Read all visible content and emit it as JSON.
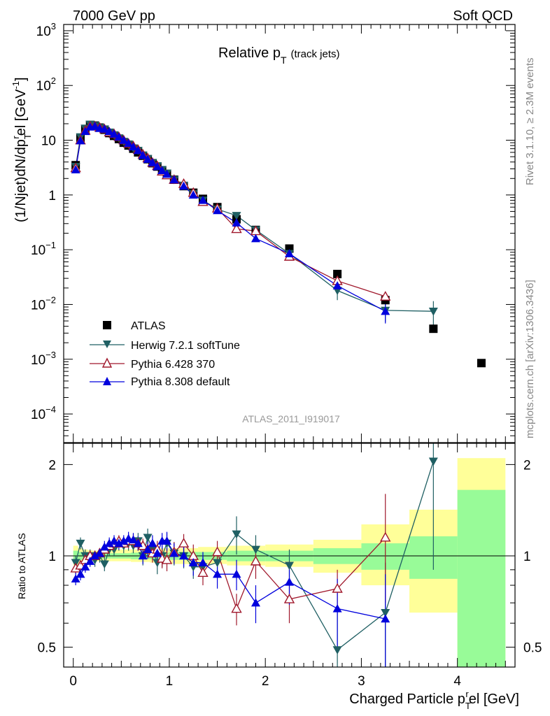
{
  "header": {
    "left": "7000 GeV pp",
    "right": "Soft QCD"
  },
  "side": {
    "rivet": "Rivet 3.1.10, ≥ 2.3M events",
    "mcplots": "mcplots.cern.ch [arXiv:1306.3436]"
  },
  "analysis_id": "ATLAS_2011_I919017",
  "colors": {
    "atlas": "#000000",
    "herwig": "#1f5f63",
    "pythia6": "#a0182c",
    "pythia8": "#0000dd",
    "band_inner": "#98fb98",
    "band_outer": "#ffff99"
  },
  "chart_data": [
    {
      "type": "scatter",
      "panel": "main",
      "title_main": "Relative p",
      "title_sub": "T",
      "title_tag": "(track jets)",
      "ylabel": "(1/Njet)dN/dp",
      "ylabel_sub": "T",
      "ylabel_sup": "r",
      "ylabel_tail": "el [GeV",
      "ylabel_unit_sup": "-1",
      "ylabel_end": "]",
      "yscale": "log",
      "ylim": [
        3e-05,
        1300
      ],
      "xlim": [
        -0.1,
        4.6
      ],
      "yticks": [
        {
          "v": 1000,
          "base": "10",
          "exp": "3"
        },
        {
          "v": 100,
          "base": "10",
          "exp": "2"
        },
        {
          "v": 10,
          "base": "10",
          "exp": ""
        },
        {
          "v": 1,
          "base": "1",
          "exp": ""
        },
        {
          "v": 0.1,
          "base": "10",
          "exp": "−1"
        },
        {
          "v": 0.01,
          "base": "10",
          "exp": "−2"
        },
        {
          "v": 0.001,
          "base": "10",
          "exp": "−3"
        },
        {
          "v": 0.0001,
          "base": "10",
          "exp": "−4"
        }
      ],
      "legend_position": "lower-left",
      "series": [
        {
          "name": "ATLAS",
          "marker": "square",
          "x": [
            0.025,
            0.075,
            0.125,
            0.175,
            0.225,
            0.275,
            0.325,
            0.375,
            0.425,
            0.475,
            0.525,
            0.575,
            0.625,
            0.675,
            0.725,
            0.775,
            0.825,
            0.875,
            0.925,
            0.975,
            1.05,
            1.15,
            1.25,
            1.35,
            1.5,
            1.7,
            1.9,
            2.25,
            2.75,
            3.25,
            3.75,
            4.25
          ],
          "y": [
            3.5,
            11,
            16,
            19,
            18.5,
            17,
            15.5,
            13.5,
            12,
            10.5,
            9,
            8,
            7,
            6,
            5.2,
            4.5,
            3.8,
            3.3,
            2.8,
            2.4,
            1.9,
            1.45,
            1.1,
            0.85,
            0.6,
            0.36,
            0.23,
            0.105,
            0.036,
            0.012,
            0.0036,
            0.00085
          ]
        },
        {
          "name": "Herwig 7.2.1 softTune",
          "marker": "triangle-down",
          "x": [
            0.025,
            0.075,
            0.125,
            0.175,
            0.225,
            0.275,
            0.325,
            0.375,
            0.425,
            0.475,
            0.525,
            0.575,
            0.625,
            0.675,
            0.725,
            0.775,
            0.825,
            0.875,
            0.925,
            0.975,
            1.05,
            1.15,
            1.25,
            1.35,
            1.5,
            1.7,
            1.9,
            2.25,
            2.75,
            3.25,
            3.75
          ],
          "y": [
            3.3,
            11.5,
            16.5,
            19.5,
            18.5,
            17,
            16,
            14,
            12.5,
            11,
            9.5,
            8.5,
            7.2,
            6.5,
            5.3,
            4.6,
            3.9,
            3.4,
            2.9,
            2.5,
            1.9,
            1.5,
            1.05,
            0.8,
            0.55,
            0.42,
            0.23,
            0.085,
            0.018,
            0.0078,
            0.0075
          ],
          "err": [
            0.2,
            0.5,
            0.5,
            0.6,
            0.6,
            0.5,
            0.5,
            0.4,
            0.4,
            0.3,
            0.3,
            0.3,
            0.25,
            0.25,
            0.2,
            0.2,
            0.15,
            0.15,
            0.12,
            0.1,
            0.08,
            0.06,
            0.05,
            0.04,
            0.03,
            0.04,
            0.02,
            0.008,
            0.006,
            0.003,
            0.004
          ]
        },
        {
          "name": "Pythia 6.428 370",
          "marker": "triangle-up-open",
          "x": [
            0.025,
            0.075,
            0.125,
            0.175,
            0.225,
            0.275,
            0.325,
            0.375,
            0.425,
            0.475,
            0.525,
            0.575,
            0.625,
            0.675,
            0.725,
            0.775,
            0.825,
            0.875,
            0.925,
            0.975,
            1.05,
            1.15,
            1.25,
            1.35,
            1.5,
            1.7,
            1.9,
            2.25,
            2.75,
            3.25
          ],
          "y": [
            3.1,
            10,
            15,
            18,
            18,
            17,
            16,
            14,
            13,
            11.5,
            10,
            8.7,
            7.8,
            6.7,
            5.5,
            4.7,
            3.9,
            3.4,
            2.7,
            2.3,
            1.9,
            1.6,
            1.1,
            0.75,
            0.57,
            0.24,
            0.22,
            0.075,
            0.027,
            0.014
          ],
          "err": [
            0.2,
            0.4,
            0.5,
            0.5,
            0.5,
            0.5,
            0.4,
            0.4,
            0.4,
            0.3,
            0.3,
            0.3,
            0.25,
            0.2,
            0.2,
            0.15,
            0.15,
            0.12,
            0.1,
            0.1,
            0.08,
            0.06,
            0.05,
            0.04,
            0.03,
            0.03,
            0.02,
            0.007,
            0.004,
            0.003
          ]
        },
        {
          "name": "Pythia 8.308 default",
          "marker": "triangle-up",
          "x": [
            0.025,
            0.075,
            0.125,
            0.175,
            0.225,
            0.275,
            0.325,
            0.375,
            0.425,
            0.475,
            0.525,
            0.575,
            0.625,
            0.675,
            0.725,
            0.775,
            0.825,
            0.875,
            0.925,
            0.975,
            1.05,
            1.15,
            1.25,
            1.35,
            1.5,
            1.7,
            1.9,
            2.25,
            2.75,
            3.25
          ],
          "y": [
            2.9,
            9.8,
            14.5,
            17.5,
            18,
            16.5,
            16,
            14.5,
            13,
            11.5,
            10,
            8.8,
            7.6,
            6.5,
            5.3,
            4.5,
            3.9,
            3.3,
            2.8,
            2.4,
            1.9,
            1.45,
            1.0,
            0.8,
            0.52,
            0.31,
            0.16,
            0.085,
            0.022,
            0.0075
          ],
          "err": [
            0.2,
            0.4,
            0.5,
            0.5,
            0.5,
            0.5,
            0.4,
            0.4,
            0.4,
            0.3,
            0.3,
            0.3,
            0.25,
            0.2,
            0.2,
            0.15,
            0.15,
            0.12,
            0.1,
            0.1,
            0.08,
            0.06,
            0.05,
            0.04,
            0.03,
            0.03,
            0.02,
            0.008,
            0.005,
            0.003
          ]
        }
      ]
    },
    {
      "type": "scatter",
      "panel": "ratio",
      "ylabel": "Ratio to ATLAS",
      "xlabel": "Charged Particle p",
      "xlabel_sub": "T",
      "xlabel_sup": "r",
      "xlabel_tail": "el [GeV]",
      "yscale": "log",
      "ylim": [
        0.43,
        2.35
      ],
      "xlim": [
        -0.1,
        4.6
      ],
      "xticks": [
        0,
        1,
        2,
        3,
        4
      ],
      "yticks": [
        0.5,
        1,
        2
      ],
      "bands": {
        "edges": [
          0,
          0.05,
          0.1,
          0.15,
          0.2,
          0.3,
          0.4,
          0.6,
          0.8,
          1.0,
          1.3,
          1.6,
          2.0,
          2.5,
          3.0,
          3.5,
          4.0,
          4.5
        ],
        "inner": [
          [
            0.96,
            1.04
          ],
          [
            0.97,
            1.03
          ],
          [
            0.975,
            1.025
          ],
          [
            0.98,
            1.02
          ],
          [
            0.98,
            1.02
          ],
          [
            0.98,
            1.02
          ],
          [
            0.98,
            1.02
          ],
          [
            0.975,
            1.025
          ],
          [
            0.975,
            1.025
          ],
          [
            0.97,
            1.03
          ],
          [
            0.97,
            1.03
          ],
          [
            0.96,
            1.04
          ],
          [
            0.96,
            1.04
          ],
          [
            0.94,
            1.06
          ],
          [
            0.9,
            1.1
          ],
          [
            0.84,
            1.16
          ],
          [
            0.37,
            1.65
          ]
        ],
        "outer": [
          [
            0.93,
            1.08
          ],
          [
            0.94,
            1.06
          ],
          [
            0.95,
            1.05
          ],
          [
            0.955,
            1.045
          ],
          [
            0.96,
            1.04
          ],
          [
            0.96,
            1.045
          ],
          [
            0.96,
            1.05
          ],
          [
            0.955,
            1.05
          ],
          [
            0.95,
            1.06
          ],
          [
            0.94,
            1.06
          ],
          [
            0.94,
            1.07
          ],
          [
            0.93,
            1.08
          ],
          [
            0.92,
            1.09
          ],
          [
            0.88,
            1.13
          ],
          [
            0.8,
            1.27
          ],
          [
            0.65,
            1.42
          ],
          [
            0.36,
            2.1
          ]
        ]
      },
      "series": [
        {
          "name": "Herwig 7.2.1 softTune",
          "x": [
            0.025,
            0.075,
            0.125,
            0.175,
            0.225,
            0.275,
            0.325,
            0.375,
            0.425,
            0.475,
            0.525,
            0.575,
            0.625,
            0.675,
            0.725,
            0.775,
            0.825,
            0.875,
            0.925,
            0.975,
            1.05,
            1.15,
            1.25,
            1.35,
            1.5,
            1.7,
            1.9,
            2.25,
            2.75,
            3.25,
            3.75
          ],
          "y": [
            0.95,
            1.1,
            1.0,
            1.0,
            0.97,
            1.0,
            0.94,
            1.05,
            1.05,
            1.1,
            1.08,
            1.1,
            1.08,
            1.12,
            1.0,
            1.15,
            1.05,
            0.95,
            1.0,
            1.1,
            1.02,
            1.0,
            0.92,
            0.92,
            0.95,
            1.18,
            1.05,
            0.93,
            0.49,
            0.65,
            2.05
          ],
          "err": [
            0.05,
            0.05,
            0.05,
            0.05,
            0.05,
            0.05,
            0.05,
            0.05,
            0.05,
            0.06,
            0.06,
            0.06,
            0.06,
            0.07,
            0.07,
            0.08,
            0.08,
            0.08,
            0.08,
            0.09,
            0.09,
            0.09,
            0.08,
            0.08,
            0.08,
            0.17,
            0.12,
            0.12,
            0.2,
            0.3,
            1.15
          ]
        },
        {
          "name": "Pythia 6.428 370",
          "x": [
            0.025,
            0.075,
            0.125,
            0.175,
            0.225,
            0.275,
            0.325,
            0.375,
            0.425,
            0.475,
            0.525,
            0.575,
            0.625,
            0.675,
            0.725,
            0.775,
            0.825,
            0.875,
            0.925,
            0.975,
            1.05,
            1.15,
            1.25,
            1.35,
            1.5,
            1.7,
            1.9,
            2.25,
            2.75,
            3.25
          ],
          "y": [
            0.91,
            0.93,
            0.97,
            1.0,
            1.0,
            1.02,
            1.05,
            1.08,
            1.1,
            1.12,
            1.1,
            1.12,
            1.12,
            1.1,
            1.08,
            1.05,
            1.02,
            1.05,
            0.98,
            0.97,
            1.03,
            1.1,
            1.0,
            0.88,
            1.03,
            0.67,
            0.96,
            0.72,
            0.78,
            1.15
          ],
          "err": [
            0.04,
            0.04,
            0.04,
            0.04,
            0.04,
            0.04,
            0.05,
            0.05,
            0.05,
            0.05,
            0.05,
            0.06,
            0.06,
            0.06,
            0.06,
            0.07,
            0.07,
            0.07,
            0.07,
            0.08,
            0.08,
            0.08,
            0.09,
            0.08,
            0.09,
            0.08,
            0.12,
            0.12,
            0.12,
            0.45
          ]
        },
        {
          "name": "Pythia 8.308 default",
          "x": [
            0.025,
            0.075,
            0.125,
            0.175,
            0.225,
            0.275,
            0.325,
            0.375,
            0.425,
            0.475,
            0.525,
            0.575,
            0.625,
            0.675,
            0.725,
            0.775,
            0.825,
            0.875,
            0.925,
            0.975,
            1.05,
            1.15,
            1.25,
            1.35,
            1.5,
            1.7,
            1.9,
            2.25,
            2.75,
            3.25
          ],
          "y": [
            0.84,
            0.87,
            0.92,
            0.96,
            1.0,
            1.02,
            1.07,
            1.1,
            1.12,
            1.1,
            1.12,
            1.14,
            1.13,
            1.1,
            1.0,
            1.05,
            1.1,
            1.02,
            1.12,
            1.12,
            1.02,
            1.0,
            0.95,
            0.95,
            0.87,
            0.87,
            0.7,
            0.82,
            0.67,
            0.62
          ],
          "err": [
            0.04,
            0.04,
            0.04,
            0.04,
            0.04,
            0.04,
            0.05,
            0.05,
            0.05,
            0.05,
            0.05,
            0.06,
            0.06,
            0.06,
            0.06,
            0.07,
            0.07,
            0.07,
            0.07,
            0.08,
            0.08,
            0.08,
            0.09,
            0.08,
            0.09,
            0.1,
            0.1,
            0.13,
            0.17,
            0.25
          ]
        }
      ]
    }
  ]
}
